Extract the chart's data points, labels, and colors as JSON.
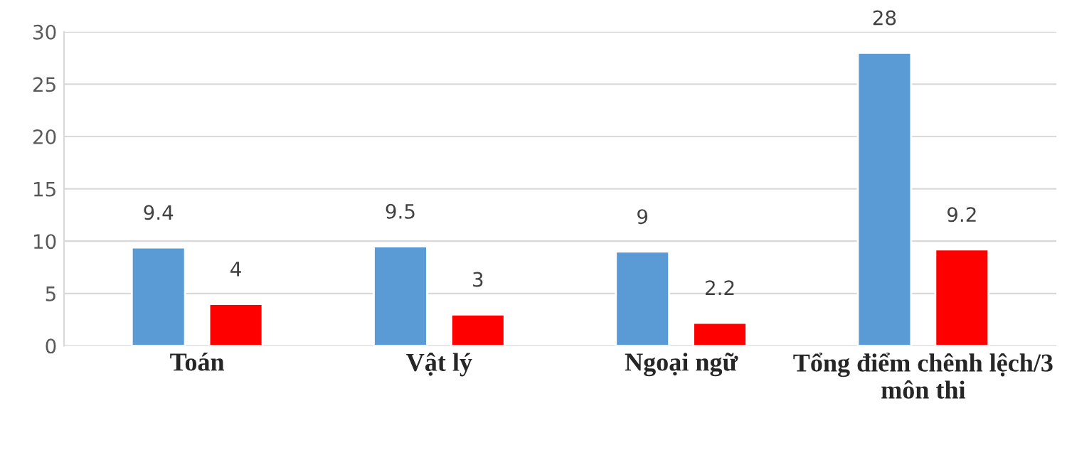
{
  "chart_data": {
    "type": "bar",
    "categories": [
      "Toán",
      "Vật lý",
      "Ngoại ngữ",
      "Tổng điểm chênh lệch/3 môn thi"
    ],
    "series": [
      {
        "color": "#5b9bd5",
        "values": [
          9.4,
          9.5,
          9,
          28
        ]
      },
      {
        "color": "#ff0000",
        "values": [
          4,
          3,
          2.2,
          9.2
        ]
      }
    ],
    "ylim": [
      0,
      30
    ],
    "yticks": [
      0,
      5,
      10,
      15,
      20,
      25,
      30
    ],
    "grid": "y",
    "data_labels": true,
    "legend": false
  }
}
